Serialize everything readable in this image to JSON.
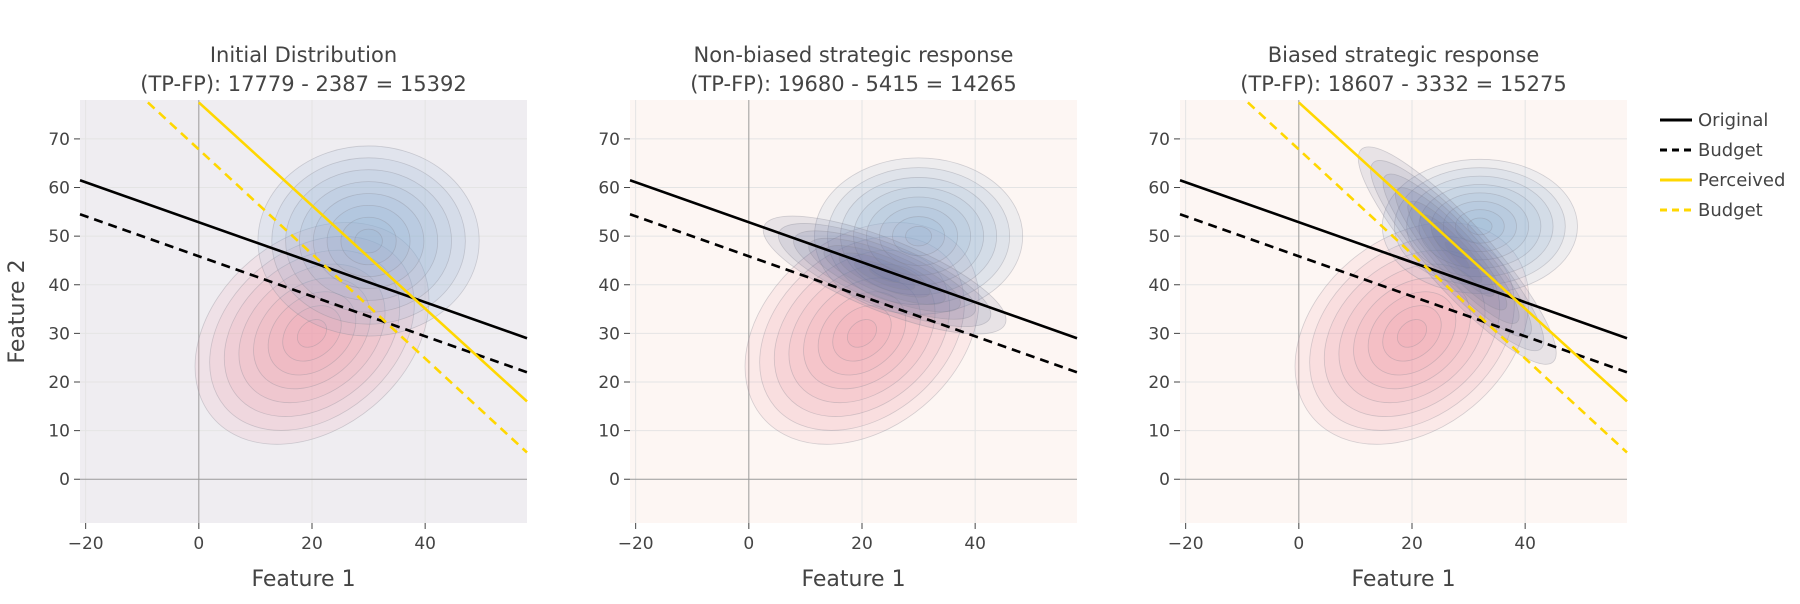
{
  "colors": {
    "original": "#000000",
    "budget": "#000000",
    "perceived": "#FFD700",
    "perceived_budget": "#FFD700",
    "panel1_bg": "#efedf1",
    "panel2_bg": "#fdf6f3",
    "panel3_bg": "#fdf6f3",
    "grid": "#e4e4e4",
    "zeroline": "#9a9a9a",
    "positive_density": "#8fb0d6",
    "negative_density": "#ef9aa9"
  },
  "legend": {
    "placement": "right",
    "items": [
      {
        "label": "Original",
        "style": "solid",
        "color": "#000000"
      },
      {
        "label": "Budget",
        "style": "dashed",
        "color": "#000000"
      },
      {
        "label": "Perceived",
        "style": "solid",
        "color": "#FFD700"
      },
      {
        "label": "Budget",
        "style": "dashed",
        "color": "#FFD700"
      }
    ]
  },
  "chart_data": [
    {
      "type": "contour",
      "title_line1": "Initial Distribution",
      "title_line2": "(TP-FP): 17779 - 2387 = 15392",
      "xlabel": "Feature 1",
      "ylabel": "Feature 2",
      "xlim": [
        -21,
        58
      ],
      "ylim": [
        -9,
        78
      ],
      "xticks": [
        -20,
        0,
        20,
        40
      ],
      "yticks": [
        0,
        10,
        20,
        30,
        40,
        50,
        60,
        70
      ],
      "grid": true,
      "lines": [
        {
          "name": "Original",
          "style": "solid",
          "color": "#000000",
          "points": [
            [
              -21,
              61.5
            ],
            [
              58,
              29
            ]
          ]
        },
        {
          "name": "Budget",
          "style": "dashed",
          "color": "#000000",
          "points": [
            [
              -21,
              54.5
            ],
            [
              58,
              22
            ]
          ]
        },
        {
          "name": "Perceived",
          "style": "solid",
          "color": "#FFD700",
          "points": [
            [
              0,
              77.5
            ],
            [
              58,
              16
            ]
          ]
        },
        {
          "name": "Budget",
          "style": "dashed",
          "color": "#FFD700",
          "points": [
            [
              -9,
              77.5
            ],
            [
              58,
              5.5
            ]
          ]
        }
      ],
      "densities": [
        {
          "class": "negative",
          "color": "#ef9aa9",
          "center": [
            20,
            30
          ],
          "spread": [
            10,
            8.5
          ],
          "angle_deg": 40
        },
        {
          "class": "positive",
          "color": "#8fb0d6",
          "center": [
            30,
            49
          ],
          "spread": [
            8.5,
            8.5
          ],
          "angle_deg": 0
        }
      ]
    },
    {
      "type": "contour",
      "title_line1": "Non-biased strategic response",
      "title_line2": "(TP-FP): 19680 - 5415 = 14265",
      "xlabel": "Feature 1",
      "xlim": [
        -21,
        58
      ],
      "ylim": [
        -9,
        78
      ],
      "xticks": [
        -20,
        0,
        20,
        40
      ],
      "yticks": [
        0,
        10,
        20,
        30,
        40,
        50,
        60,
        70
      ],
      "grid": true,
      "lines": [
        {
          "name": "Original",
          "style": "solid",
          "color": "#000000",
          "points": [
            [
              -21,
              61.5
            ],
            [
              58,
              29
            ]
          ]
        },
        {
          "name": "Budget",
          "style": "dashed",
          "color": "#000000",
          "points": [
            [
              -21,
              54.5
            ],
            [
              58,
              22
            ]
          ]
        }
      ],
      "densities": [
        {
          "class": "negative",
          "color": "#ef9aa9",
          "center": [
            20,
            30
          ],
          "spread": [
            10,
            8.5
          ],
          "angle_deg": 40
        },
        {
          "class": "positive",
          "color": "#8fb0d6",
          "center": [
            30,
            50
          ],
          "spread": [
            8,
            7
          ],
          "angle_deg": 0
        },
        {
          "class": "moved",
          "color": "#6a6f9c",
          "center": [
            24,
            42
          ],
          "spread": [
            10,
            3.2
          ],
          "angle_deg": -22
        }
      ]
    },
    {
      "type": "contour",
      "title_line1": "Biased strategic response",
      "title_line2": "(TP-FP): 18607 - 3332 = 15275",
      "xlabel": "Feature 1",
      "xlim": [
        -21,
        58
      ],
      "ylim": [
        -9,
        78
      ],
      "xticks": [
        -20,
        0,
        20,
        40
      ],
      "yticks": [
        0,
        10,
        20,
        30,
        40,
        50,
        60,
        70
      ],
      "grid": true,
      "lines": [
        {
          "name": "Original",
          "style": "solid",
          "color": "#000000",
          "points": [
            [
              -21,
              61.5
            ],
            [
              58,
              29
            ]
          ]
        },
        {
          "name": "Budget",
          "style": "dashed",
          "color": "#000000",
          "points": [
            [
              -21,
              54.5
            ],
            [
              58,
              22
            ]
          ]
        },
        {
          "name": "Perceived",
          "style": "solid",
          "color": "#FFD700",
          "points": [
            [
              0,
              77.5
            ],
            [
              58,
              16
            ]
          ]
        },
        {
          "name": "Budget",
          "style": "dashed",
          "color": "#FFD700",
          "points": [
            [
              -9,
              77.5
            ],
            [
              58,
              5.5
            ]
          ]
        }
      ],
      "densities": [
        {
          "class": "negative",
          "color": "#ef9aa9",
          "center": [
            20,
            30
          ],
          "spread": [
            10,
            8.5
          ],
          "angle_deg": 40
        },
        {
          "class": "positive",
          "color": "#8fb0d6",
          "center": [
            32,
            52
          ],
          "spread": [
            7.5,
            6
          ],
          "angle_deg": 0
        },
        {
          "class": "moved",
          "color": "#6a6f9c",
          "center": [
            28,
            46
          ],
          "spread": [
            11,
            3
          ],
          "angle_deg": -48
        }
      ]
    }
  ]
}
